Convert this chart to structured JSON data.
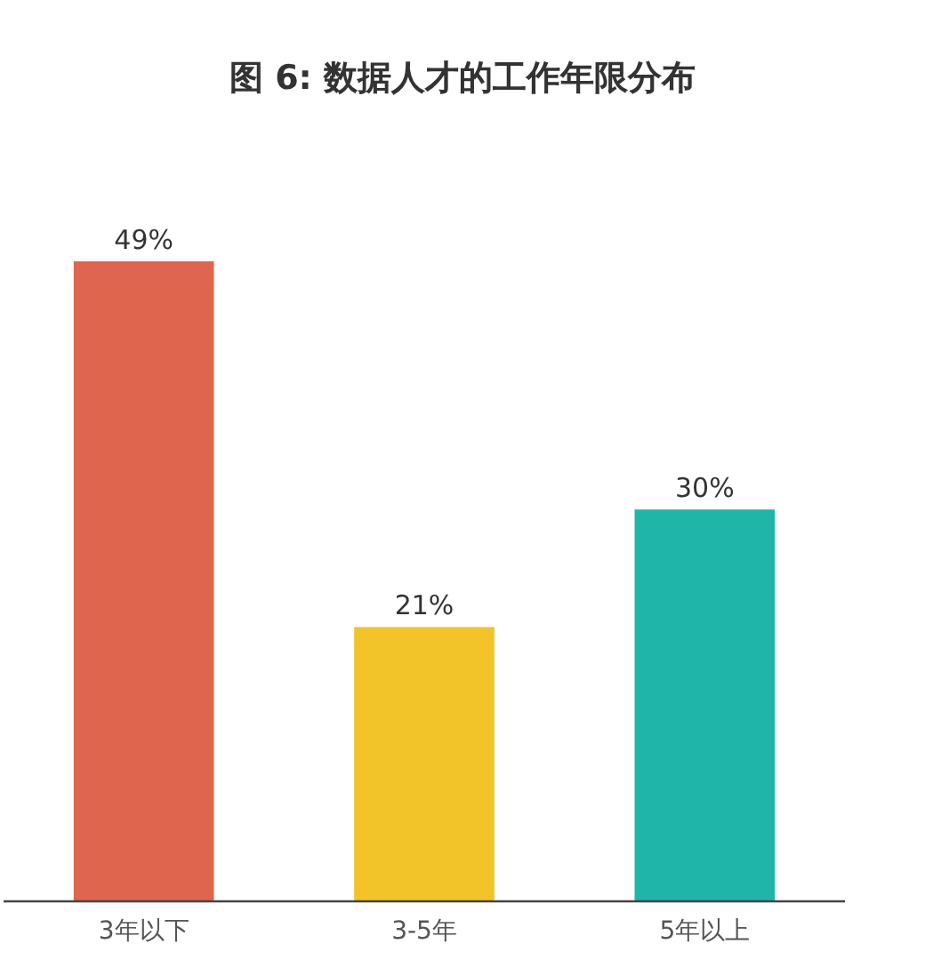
{
  "chart_data": {
    "type": "bar",
    "title": "图 6: 数据人才的工作年限分布",
    "categories": [
      "3年以下",
      "3-5年",
      "5年以上"
    ],
    "values": [
      49,
      21,
      30
    ],
    "colors": [
      "#e0654f",
      "#f2c42a",
      "#1fb5a8"
    ],
    "value_labels": [
      "49%",
      "21%",
      "30%"
    ]
  }
}
